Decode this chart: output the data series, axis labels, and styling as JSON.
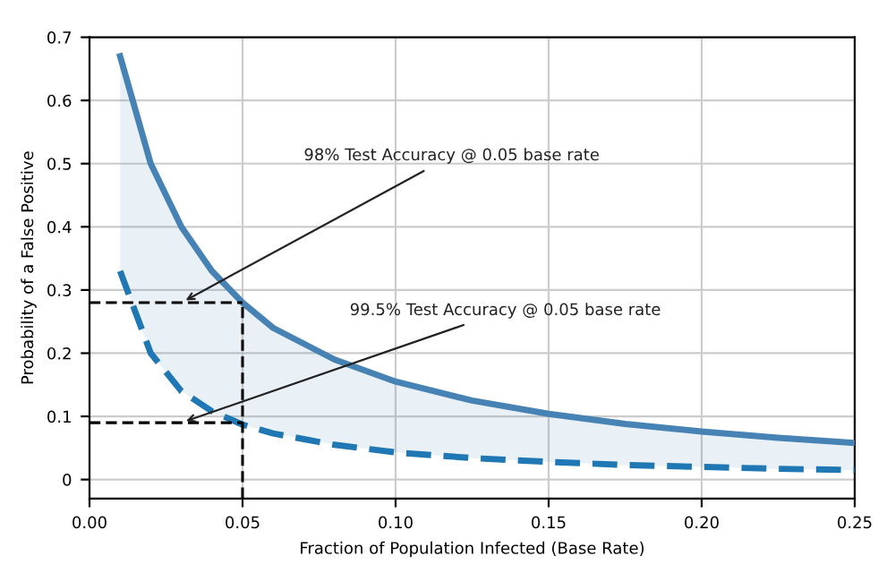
{
  "chart_data": {
    "type": "line",
    "xlabel": "Fraction of Population Infected (Base Rate)",
    "ylabel": "Probability of a False Positive",
    "x": [
      0.01,
      0.02,
      0.03,
      0.04,
      0.05,
      0.06,
      0.08,
      0.1,
      0.125,
      0.15,
      0.175,
      0.2,
      0.225,
      0.25
    ],
    "series": [
      {
        "color": "#4682b4",
        "line_style": "solid",
        "values": [
          0.67,
          0.5,
          0.4,
          0.33,
          0.28,
          0.24,
          0.19,
          0.155,
          0.125,
          0.104,
          0.088,
          0.076,
          0.066,
          0.058
        ],
        "lower": [
          0.33,
          0.2,
          0.14,
          0.108,
          0.087,
          0.073,
          0.055,
          0.043,
          0.034,
          0.028,
          0.023,
          0.02,
          0.017,
          0.015
        ],
        "upper": [
          0.67,
          0.5,
          0.4,
          0.33,
          0.28,
          0.24,
          0.19,
          0.155,
          0.125,
          0.104,
          0.088,
          0.076,
          0.066,
          0.058
        ]
      },
      {
        "color": "#1f77b4",
        "line_style": "dashed",
        "values": [
          0.33,
          0.2,
          0.14,
          0.108,
          0.087,
          0.073,
          0.055,
          0.043,
          0.034,
          0.028,
          0.023,
          0.02,
          0.017,
          0.015
        ]
      }
    ],
    "annotations": [
      {
        "text": "98% Test Accuracy @ 0.05 base rate",
        "x": 0.03,
        "y": 0.28
      },
      {
        "text": "99.5% Test Accuracy @ 0.05 base rate",
        "x": 0.03,
        "y": 0.09
      }
    ],
    "ref_lines": [
      {
        "axis": "x",
        "value": 0.05,
        "color": "#000000",
        "line_style": "dashed"
      },
      {
        "axis": "y",
        "value": 0.28,
        "color": "#000000",
        "line_style": "dashed"
      },
      {
        "axis": "y",
        "value": 0.09,
        "color": "#000000",
        "line_style": "dashed"
      }
    ],
    "xlim": [
      0,
      0.25
    ],
    "xticks": [
      {
        "value": 0,
        "label": "0.00"
      },
      0.05,
      {
        "value": 0.1,
        "label": "0.10"
      },
      0.15,
      {
        "value": 0.2,
        "label": "0.20"
      },
      0.25
    ],
    "ylim": [
      -0.03,
      0.7
    ],
    "yticks": [
      0,
      0.1,
      0.2,
      0.3,
      0.4,
      0.5,
      0.6,
      0.7
    ],
    "grid": true,
    "legend": false
  }
}
